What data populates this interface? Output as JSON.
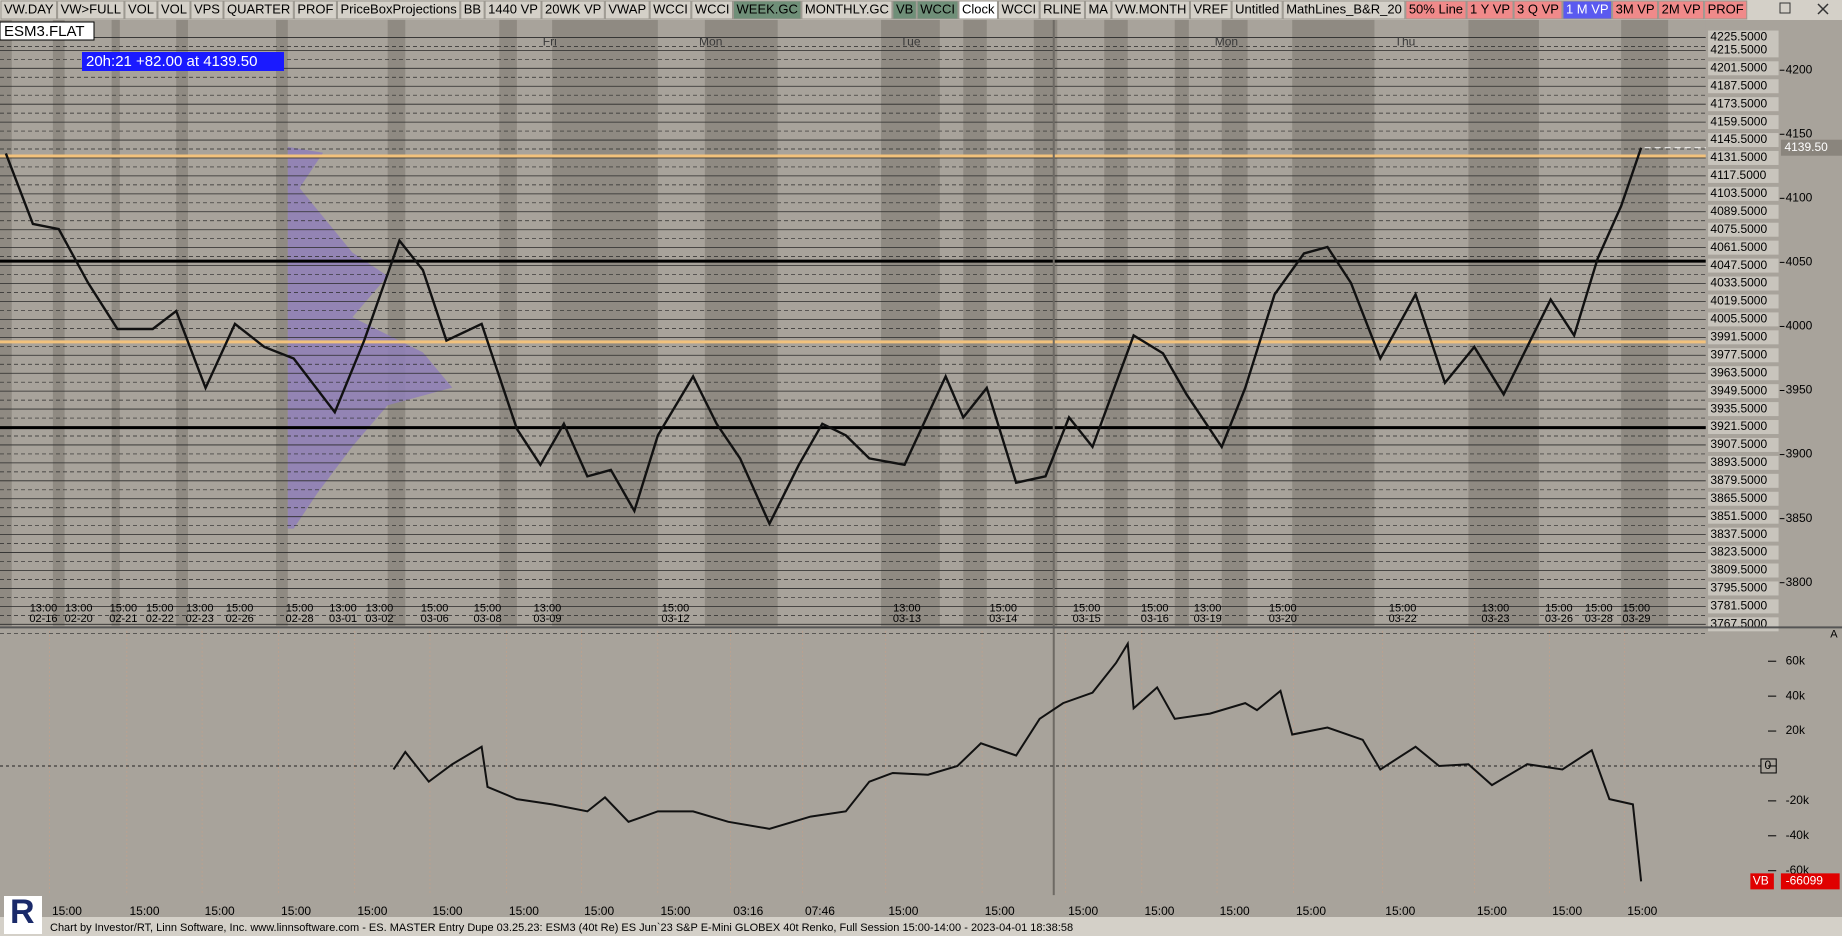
{
  "toolbar": {
    "buttons": [
      {
        "label": "VW.DAY",
        "color": "#d4d0c8"
      },
      {
        "label": "VW>FULL",
        "color": "#d4d0c8"
      },
      {
        "label": "VOL",
        "color": "#d4d0c8"
      },
      {
        "label": "VOL",
        "color": "#d4d0c8"
      },
      {
        "label": "VPS",
        "color": "#d4d0c8"
      },
      {
        "label": "QUARTER",
        "color": "#d4d0c8"
      },
      {
        "label": "PROF",
        "color": "#d4d0c8"
      },
      {
        "label": "PriceBoxProjections",
        "color": "#d4d0c8"
      },
      {
        "label": "BB",
        "color": "#d4d0c8"
      },
      {
        "label": "1440 VP",
        "color": "#d4d0c8"
      },
      {
        "label": "20WK VP",
        "color": "#d4d0c8"
      },
      {
        "label": "VWAP",
        "color": "#d4d0c8"
      },
      {
        "label": "WCCI",
        "color": "#d4d0c8"
      },
      {
        "label": "WCCI",
        "color": "#d4d0c8"
      },
      {
        "label": "WEEK.GC",
        "color": "#6f8f78"
      },
      {
        "label": "MONTHLY.GC",
        "color": "#d4d0c8"
      },
      {
        "label": "VB",
        "color": "#6f8f78"
      },
      {
        "label": "WCCI",
        "color": "#6f8f78"
      },
      {
        "label": "Clock",
        "color": "#ffffff"
      },
      {
        "label": "WCCI",
        "color": "#d4d0c8"
      },
      {
        "label": "RLINE",
        "color": "#d4d0c8"
      },
      {
        "label": "MA",
        "color": "#d4d0c8"
      },
      {
        "label": "VW.MONTH",
        "color": "#d4d0c8"
      },
      {
        "label": "VREF",
        "color": "#d4d0c8"
      },
      {
        "label": "Untitled",
        "color": "#d4d0c8"
      },
      {
        "label": "MathLines_B&R_20",
        "color": "#d4d0c8"
      },
      {
        "label": "50% Line",
        "color": "#f08a8a"
      },
      {
        "label": "1 Y VP",
        "color": "#f08a8a"
      },
      {
        "label": "3 Q VP",
        "color": "#f08a8a"
      },
      {
        "label": "1 M VP",
        "color": "#5a5af0"
      },
      {
        "label": "3M VP",
        "color": "#f08a8a"
      },
      {
        "label": "2M VP",
        "color": "#f08a8a"
      },
      {
        "label": "PROF",
        "color": "#f08a8a"
      }
    ]
  },
  "symbol": "ESM3.FLAT",
  "status": "20h:21  +82.00 at 4139.50",
  "logo": "R",
  "footer": "Chart by Investor/RT, Linn Software, Inc. www.linnsoftware.com - ES. MASTER Entry Dupe 03.25.23: ESM3 (40t Re) ES Jun`23 S&P E-Mini GLOBEX 40t Renko, Full Session 15:00-14:00 - 2023-04-01 18:38:58",
  "chart_data": [
    {
      "type": "line",
      "color": "#111111",
      "ylim": [
        3767,
        4238.3
      ],
      "yticks": [
        4200,
        4150,
        4100,
        4050,
        4000,
        3950,
        3900,
        3850,
        3800
      ],
      "levels": [
        {
          "value": 4225.5,
          "label": "4225.5000"
        },
        {
          "value": 4215.5,
          "label": "4215.5000"
        },
        {
          "value": 4201.5,
          "label": "4201.5000"
        },
        {
          "value": 4187.5,
          "label": "4187.5000"
        },
        {
          "value": 4173.5,
          "label": "4173.5000"
        },
        {
          "value": 4159.5,
          "label": "4159.5000"
        },
        {
          "value": 4145.5,
          "label": "4145.5000"
        },
        {
          "value": 4131.5,
          "label": "4131.5000"
        },
        {
          "value": 4117.5,
          "label": "4117.5000"
        },
        {
          "value": 4103.5,
          "label": "4103.5000"
        },
        {
          "value": 4089.5,
          "label": "4089.5000"
        },
        {
          "value": 4075.5,
          "label": "4075.5000"
        },
        {
          "value": 4061.5,
          "label": "4061.5000"
        },
        {
          "value": 4047.5,
          "label": "4047.5000"
        },
        {
          "value": 4033.5,
          "label": "4033.5000"
        },
        {
          "value": 4019.5,
          "label": "4019.5000"
        },
        {
          "value": 4005.5,
          "label": "4005.5000"
        },
        {
          "value": 3991.5,
          "label": "3991.5000"
        },
        {
          "value": 3977.5,
          "label": "3977.5000"
        },
        {
          "value": 3963.5,
          "label": "3963.5000"
        },
        {
          "value": 3949.5,
          "label": "3949.5000"
        },
        {
          "value": 3935.5,
          "label": "3935.5000"
        },
        {
          "value": 3921.5,
          "label": "3921.5000"
        },
        {
          "value": 3907.5,
          "label": "3907.5000"
        },
        {
          "value": 3893.5,
          "label": "3893.5000"
        },
        {
          "value": 3879.5,
          "label": "3879.5000"
        },
        {
          "value": 3865.5,
          "label": "3865.5000"
        },
        {
          "value": 3851.5,
          "label": "3851.5000"
        },
        {
          "value": 3837.5,
          "label": "3837.5000"
        },
        {
          "value": 3823.5,
          "label": "3823.5000"
        },
        {
          "value": 3809.5,
          "label": "3809.5000"
        },
        {
          "value": 3795.5,
          "label": "3795.5000"
        },
        {
          "value": 3781.5,
          "label": "3781.5000"
        },
        {
          "value": 3767.5,
          "label": "3767.5000"
        }
      ],
      "key_lines": [
        {
          "value": 4133,
          "color": "#f2c27c"
        },
        {
          "value": 3988,
          "color": "#f2c27c"
        },
        {
          "value": 4051,
          "color": "#000000"
        },
        {
          "value": 3921,
          "color": "#000000"
        }
      ],
      "current_price": {
        "value": 4139.5,
        "label": "4139.50"
      },
      "day_labels": [
        "Fri",
        "Mon",
        "Tue",
        "Mon",
        "Thu"
      ],
      "x_labels": [
        {
          "time": "13:00",
          "date": "02-16"
        },
        {
          "time": "13:00",
          "date": "02-20"
        },
        {
          "time": "15:00",
          "date": "02-21"
        },
        {
          "time": "15:00",
          "date": "02-22"
        },
        {
          "time": "13:00",
          "date": "02-23"
        },
        {
          "time": "15:00",
          "date": "02-26"
        },
        {
          "time": "15:00",
          "date": "02-28"
        },
        {
          "time": "13:00",
          "date": "03-01"
        },
        {
          "time": "13:00",
          "date": "03-02"
        },
        {
          "time": "15:00",
          "date": "03-06"
        },
        {
          "time": "15:00",
          "date": "03-08"
        },
        {
          "time": "13:00",
          "date": "03-09"
        },
        {
          "time": "15:00",
          "date": "03-12"
        },
        {
          "time": "13:00",
          "date": "03-13"
        },
        {
          "time": "15:00",
          "date": "03-14"
        },
        {
          "time": "15:00",
          "date": "03-15"
        },
        {
          "time": "15:00",
          "date": "03-16"
        },
        {
          "time": "13:00",
          "date": "03-19"
        },
        {
          "time": "15:00",
          "date": "03-20"
        },
        {
          "time": "15:00",
          "date": "03-22"
        },
        {
          "time": "13:00",
          "date": "03-23"
        },
        {
          "time": "15:00",
          "date": "03-26"
        },
        {
          "time": "15:00",
          "date": "03-28"
        },
        {
          "time": "15:00",
          "date": "03-29"
        }
      ],
      "values": [
        4135,
        4080,
        4076,
        4034,
        3998,
        3998,
        4012,
        3952,
        4002,
        3984,
        3975,
        3933,
        3989,
        4067,
        4044,
        3989,
        4002,
        3920,
        3892,
        3924,
        3883,
        3888,
        3856,
        3915,
        3961,
        3924,
        3897,
        3846,
        3892,
        3924,
        3915,
        3897,
        3892,
        3961,
        3929,
        3952,
        3878,
        3883,
        3929,
        3906,
        3993,
        3979,
        3947,
        3906,
        3952,
        4025,
        4057,
        4062,
        4034,
        3975,
        4025,
        3956,
        3984,
        3947,
        3984,
        4021,
        3993,
        4053,
        4094,
        4139.5
      ]
    },
    {
      "type": "line",
      "color": "#111111",
      "ylim": [
        -74000,
        77400
      ],
      "yticks": [
        {
          "value": 60000,
          "label": "60k"
        },
        {
          "value": 40000,
          "label": "40k"
        },
        {
          "value": 20000,
          "label": "20k"
        },
        0,
        {
          "value": -20000,
          "label": "-20k"
        },
        {
          "value": -40000,
          "label": "-40k"
        },
        {
          "value": -60000,
          "label": "-60k"
        }
      ],
      "series_label": "VB",
      "panel_marker": "A",
      "x_labels": [
        "15:00",
        "15:00",
        "15:00",
        "15:00",
        "15:00",
        "15:00",
        "15:00",
        "15:00",
        "15:00",
        "03:16",
        "07:46",
        "15:00",
        "15:00",
        "15:00",
        "15:00",
        "15:00",
        "15:00",
        "15:00",
        "15:00",
        "15:00",
        "15:00"
      ],
      "values": [
        -2000,
        8000,
        -9000,
        1000,
        11000,
        -12000,
        -19000,
        -22000,
        -26000,
        -18000,
        -32000,
        -26000,
        -26000,
        -32000,
        -36000,
        -29000,
        -26000,
        -9000,
        -4000,
        -5000,
        0,
        13000,
        6000,
        27000,
        36000,
        42000,
        59000,
        70000,
        33000,
        45000,
        27000,
        30000,
        36000,
        32000,
        43000,
        18000,
        22000,
        15000,
        -2000,
        11000,
        0,
        1000,
        -11000,
        1000,
        -2000,
        9000,
        -19000,
        -22000,
        -66099
      ]
    }
  ]
}
